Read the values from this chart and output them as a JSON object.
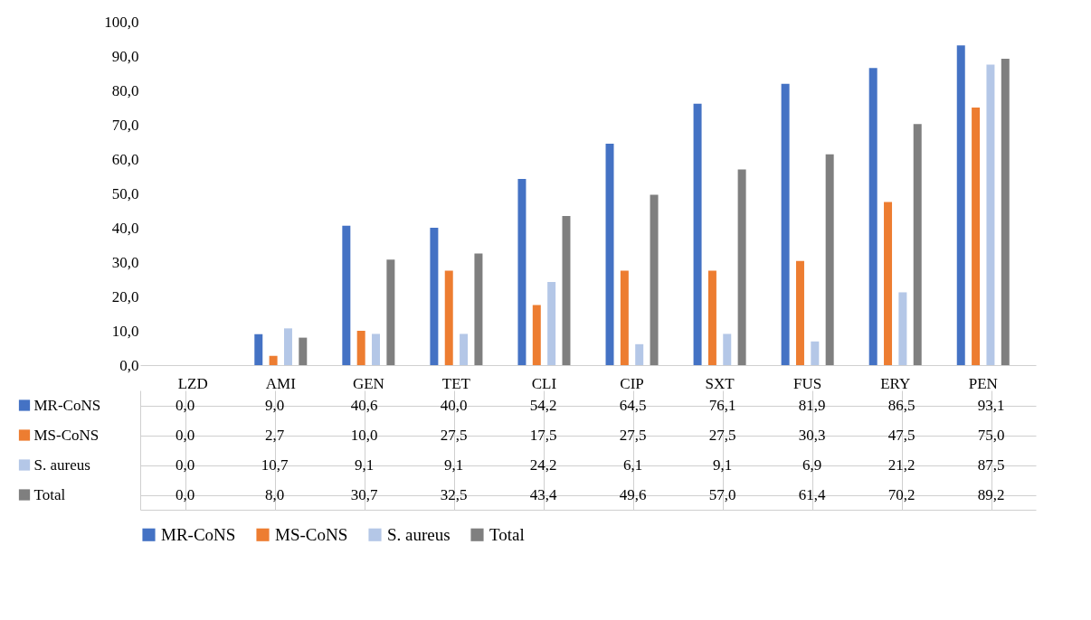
{
  "chart_data": {
    "type": "bar",
    "categories": [
      "LZD",
      "AMI",
      "GEN",
      "TET",
      "CLI",
      "CIP",
      "SXT",
      "FUS",
      "ERY",
      "PEN"
    ],
    "series": [
      {
        "name": "MR-CoNS",
        "color": "#4472c4",
        "values": [
          0.0,
          9.0,
          40.6,
          40.0,
          54.2,
          64.5,
          76.1,
          81.9,
          86.5,
          93.1
        ]
      },
      {
        "name": "MS-CoNS",
        "color": "#ed7d31",
        "values": [
          0.0,
          2.7,
          10.0,
          27.5,
          17.5,
          27.5,
          27.5,
          30.3,
          47.5,
          75.0
        ]
      },
      {
        "name": "S. aureus",
        "color": "#b4c7e7",
        "values": [
          0.0,
          10.7,
          9.1,
          9.1,
          24.2,
          6.1,
          9.1,
          6.9,
          21.2,
          87.5
        ]
      },
      {
        "name": "Total",
        "color": "#7f7f7f",
        "values": [
          0.0,
          8.0,
          30.7,
          32.5,
          43.4,
          49.6,
          57.0,
          61.4,
          70.2,
          89.2
        ]
      }
    ],
    "ylim": [
      0,
      100
    ],
    "yticks": [
      {
        "value": 0,
        "label": "0,0"
      },
      {
        "value": 10,
        "label": "10,0"
      },
      {
        "value": 20,
        "label": "20,0"
      },
      {
        "value": 30,
        "label": "30,0"
      },
      {
        "value": 40,
        "label": "40,0"
      },
      {
        "value": 50,
        "label": "50,0"
      },
      {
        "value": 60,
        "label": "60,0"
      },
      {
        "value": 70,
        "label": "70,0"
      },
      {
        "value": 80,
        "label": "80,0"
      },
      {
        "value": 90,
        "label": "90,0"
      },
      {
        "value": 100,
        "label": "100,0"
      }
    ],
    "grid": false,
    "value_labels": [
      [
        "0,0",
        "9,0",
        "40,6",
        "40,0",
        "54,2",
        "64,5",
        "76,1",
        "81,9",
        "86,5",
        "93,1"
      ],
      [
        "0,0",
        "2,7",
        "10,0",
        "27,5",
        "17,5",
        "27,5",
        "27,5",
        "30,3",
        "47,5",
        "75,0"
      ],
      [
        "0,0",
        "10,7",
        "9,1",
        "9,1",
        "24,2",
        "6,1",
        "9,1",
        "6,9",
        "21,2",
        "87,5"
      ],
      [
        "0,0",
        "8,0",
        "30,7",
        "32,5",
        "43,4",
        "49,6",
        "57,0",
        "61,4",
        "70,2",
        "89,2"
      ]
    ],
    "legend": "bottom"
  }
}
